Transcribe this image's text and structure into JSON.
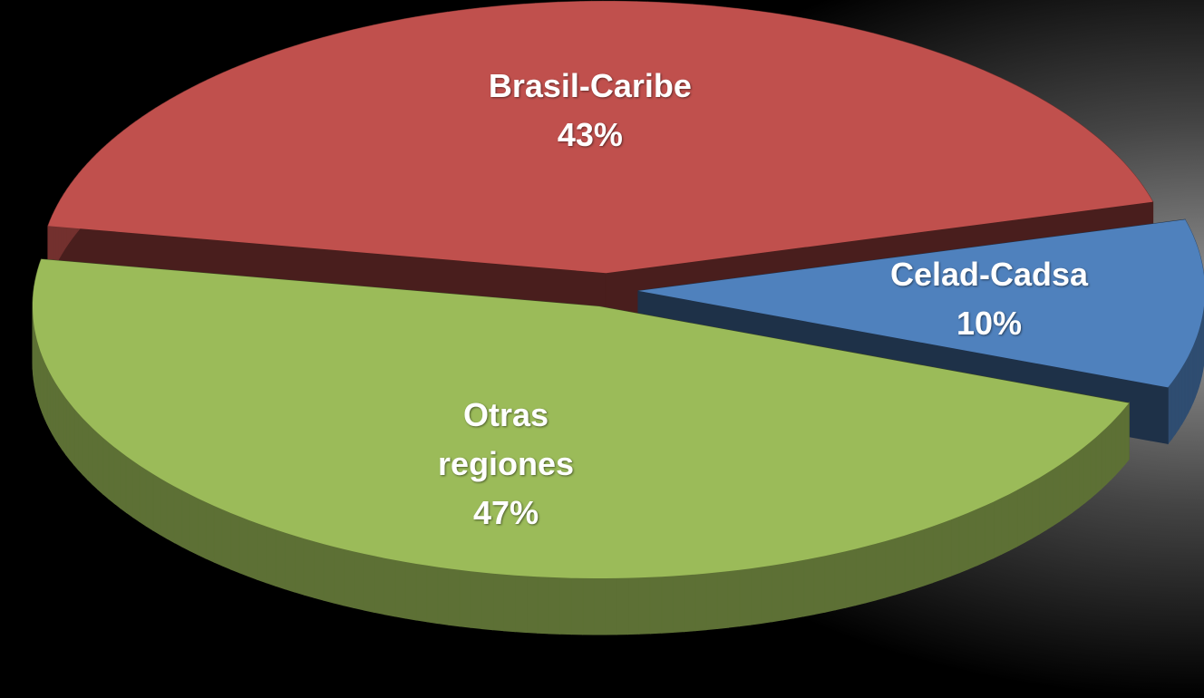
{
  "chart_data": {
    "type": "pie3d",
    "categories": [
      "Brasil-Caribe",
      "Celad-Cadsa",
      "Otras regiones"
    ],
    "values": [
      43,
      10,
      47
    ],
    "value_labels": [
      "43%",
      "10%",
      "47%"
    ],
    "colors": [
      "#c0504d",
      "#4f81bd",
      "#9bbb59"
    ]
  }
}
